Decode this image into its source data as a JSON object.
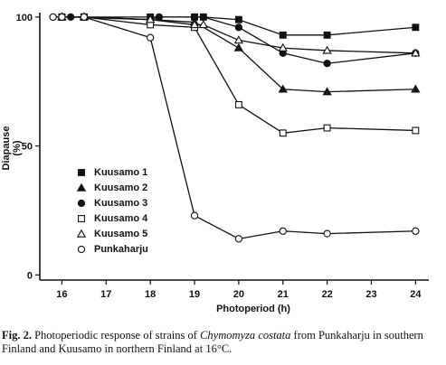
{
  "chart_data": {
    "type": "line",
    "xlabel": "Photoperiod (h)",
    "ylabel": "Diapause (%)",
    "x_ticks": [
      16,
      17,
      18,
      19,
      20,
      21,
      22,
      23,
      24
    ],
    "y_ticks": [
      0,
      50,
      100
    ],
    "xlim": [
      15.5,
      24.3
    ],
    "ylim": [
      -2,
      101
    ],
    "grid": false,
    "legend_position": "center-left",
    "series": [
      {
        "name": "Kuusamo 1",
        "marker": "filled-square",
        "x": [
          16,
          16.5,
          18,
          19,
          19.2,
          20,
          21,
          22,
          24
        ],
        "y": [
          100,
          100,
          100,
          100,
          100,
          99,
          93,
          93,
          96
        ]
      },
      {
        "name": "Kuusamo 2",
        "marker": "filled-triangle",
        "x": [
          16,
          16.5,
          18,
          19,
          20,
          21,
          22,
          24
        ],
        "y": [
          100,
          100,
          99,
          98,
          88,
          72,
          71,
          72
        ]
      },
      {
        "name": "Kuusamo 3",
        "marker": "filled-circle",
        "x": [
          15.8,
          16,
          16.2,
          18,
          18.2,
          19,
          19.2,
          20,
          21,
          22,
          24
        ],
        "y": [
          100,
          100,
          100,
          99,
          100,
          100,
          100,
          96,
          86,
          82,
          86
        ]
      },
      {
        "name": "Kuusamo 4",
        "marker": "open-square",
        "x": [
          16,
          16.5,
          18,
          19,
          20,
          21,
          22,
          24
        ],
        "y": [
          100,
          100,
          97,
          96,
          66,
          55,
          57,
          56
        ]
      },
      {
        "name": "Kuusamo 5",
        "marker": "open-triangle",
        "x": [
          16,
          16.5,
          18,
          19,
          19.2,
          20,
          21,
          22,
          24
        ],
        "y": [
          100,
          100,
          99,
          97,
          97,
          91,
          88,
          87,
          86
        ]
      },
      {
        "name": "Punkaharju",
        "marker": "open-circle",
        "x": [
          15.8,
          16,
          16.5,
          18,
          19,
          20,
          21,
          22,
          24
        ],
        "y": [
          100,
          100,
          100,
          92,
          23,
          14,
          17,
          16,
          17
        ]
      }
    ]
  },
  "caption": {
    "label": "Fig. 2.",
    "text_before": " Photoperiodic response of strains of ",
    "species": "Chymomyza costata",
    "text_after": " from Punkaharju in southern Finland and Kuusamo in northern Finland at 16°C."
  }
}
